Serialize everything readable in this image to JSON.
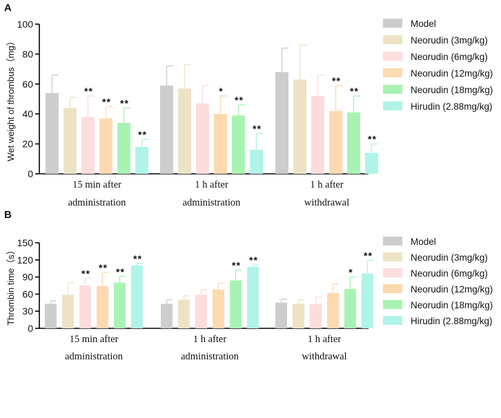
{
  "figure": {
    "series_colors": [
      "#cdcdcd",
      "#ede3c4",
      "#fddcdc",
      "#fdd9b0",
      "#a8f3b4",
      "#b0f3e8"
    ],
    "error_color": "#f2f2f2"
  },
  "chart_data": [
    {
      "type": "bar",
      "panel_label": "A",
      "ylabel": "Wet weight of thrombus（mg）",
      "xlabel": "",
      "ylim": [
        0,
        100
      ],
      "yticks": [
        0,
        20,
        40,
        60,
        80,
        100
      ],
      "yticks_text": [
        "0",
        "20",
        "40",
        "60",
        "80",
        "100"
      ],
      "categories": [
        [
          "15 min after",
          "administration"
        ],
        [
          "1 h after",
          "administration"
        ],
        [
          "1 h after",
          "withdrawal"
        ]
      ],
      "legend_position": "right",
      "series": [
        {
          "name": "Model",
          "values": [
            54,
            59,
            68
          ],
          "errors": [
            12,
            13,
            16
          ],
          "sig": [
            "",
            "",
            ""
          ]
        },
        {
          "name": "Neorudin (3mg/kg)",
          "values": [
            44,
            57,
            63
          ],
          "errors": [
            7,
            16,
            23
          ],
          "sig": [
            "",
            "",
            ""
          ]
        },
        {
          "name": "Neorudin (6mg/kg)",
          "values": [
            38,
            47,
            52
          ],
          "errors": [
            14,
            12,
            14
          ],
          "sig": [
            "**",
            "",
            ""
          ]
        },
        {
          "name": "Neorudin (12mg/kg)",
          "values": [
            37,
            40,
            42
          ],
          "errors": [
            8,
            12,
            17
          ],
          "sig": [
            "**",
            "*",
            "**"
          ]
        },
        {
          "name": "Neorudin (18mg/kg)",
          "values": [
            34,
            39,
            41
          ],
          "errors": [
            10,
            7,
            11
          ],
          "sig": [
            "**",
            "**",
            "**"
          ]
        },
        {
          "name": "Hirudin (2.88mg/kg)",
          "values": [
            18,
            16,
            14
          ],
          "errors": [
            5,
            11,
            6
          ],
          "sig": [
            "**",
            "**",
            "**"
          ]
        }
      ]
    },
    {
      "type": "bar",
      "panel_label": "B",
      "ylabel": "Thrombin time（s）",
      "xlabel": "",
      "ylim": [
        0,
        150
      ],
      "yticks": [
        0,
        30,
        60,
        90,
        120,
        150
      ],
      "yticks_text": [
        "0",
        "30",
        "60",
        "90",
        "120",
        "150"
      ],
      "categories": [
        [
          "15 min after",
          "administration"
        ],
        [
          "1 h after",
          "administration"
        ],
        [
          "1 h after",
          "withdrawal"
        ]
      ],
      "legend_position": "right",
      "series": [
        {
          "name": "Model",
          "values": [
            43,
            43,
            45
          ],
          "errors": [
            5,
            7,
            6
          ],
          "sig": [
            "",
            "",
            ""
          ]
        },
        {
          "name": "Neorudin (3mg/kg)",
          "values": [
            59,
            50,
            43
          ],
          "errors": [
            21,
            7,
            7
          ],
          "sig": [
            "",
            "",
            ""
          ]
        },
        {
          "name": "Neorudin (6mg/kg)",
          "values": [
            75,
            59,
            43
          ],
          "errors": [
            13,
            8,
            12
          ],
          "sig": [
            "**",
            "",
            ""
          ]
        },
        {
          "name": "Neorudin (12mg/kg)",
          "values": [
            74,
            68,
            62
          ],
          "errors": [
            24,
            11,
            16
          ],
          "sig": [
            "**",
            "",
            ""
          ]
        },
        {
          "name": "Neorudin (18mg/kg)",
          "values": [
            80,
            84,
            69
          ],
          "errors": [
            11,
            18,
            21
          ],
          "sig": [
            "**",
            "**",
            "*"
          ]
        },
        {
          "name": "Hirudin (2.88mg/kg)",
          "values": [
            110,
            108,
            96
          ],
          "errors": [
            4,
            3,
            23
          ],
          "sig": [
            "**",
            "**",
            "**"
          ]
        }
      ]
    }
  ]
}
